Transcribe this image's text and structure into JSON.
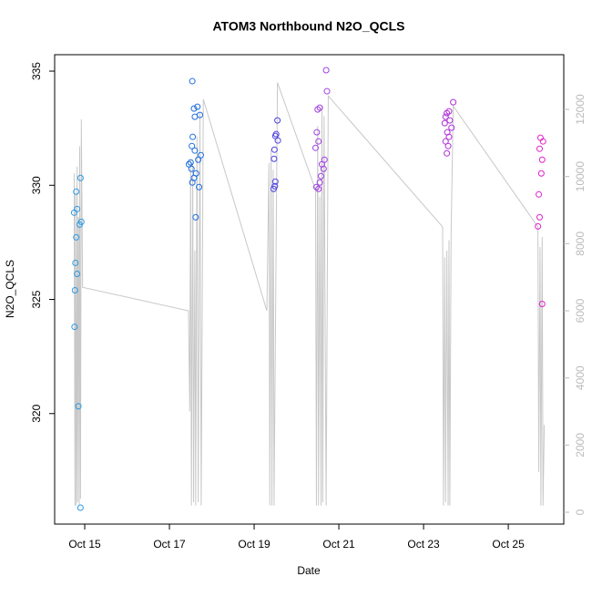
{
  "chart_data": {
    "type": "scatter",
    "title": "ATOM3 Northbound N2O_QCLS",
    "x_label": "Date",
    "y_label": "N2O_QCLS",
    "xlim": [
      14.29,
      26.31
    ],
    "xticks": [
      {
        "value": 15,
        "label": "Oct 15"
      },
      {
        "value": 17,
        "label": "Oct 17"
      },
      {
        "value": 19,
        "label": "Oct 19"
      },
      {
        "value": 21,
        "label": "Oct 21"
      },
      {
        "value": 23,
        "label": "Oct 23"
      },
      {
        "value": 25,
        "label": "Oct 25"
      }
    ],
    "ylim": [
      315.16,
      335.72
    ],
    "yticks": [
      320,
      325,
      330,
      335
    ],
    "y2lim": [
      -353,
      13629
    ],
    "y2ticks": [
      0,
      2000,
      4000,
      6000,
      8000,
      10000,
      12000
    ],
    "series": [
      {
        "type": "line",
        "axis": "y2",
        "color": "#c8c8c8",
        "x": [
          14.75,
          14.77,
          14.78,
          14.8,
          14.82,
          14.83,
          14.85,
          14.87,
          14.88,
          14.9,
          14.92,
          14.95,
          17.45,
          17.48,
          17.5,
          17.52,
          17.55,
          17.57,
          17.6,
          17.62,
          17.65,
          17.68,
          17.72,
          17.75,
          17.8,
          19.3,
          19.35,
          19.37,
          19.4,
          19.42,
          19.45,
          19.47,
          19.55,
          20.45,
          20.47,
          20.5,
          20.52,
          20.55,
          20.58,
          20.6,
          20.62,
          20.65,
          20.7,
          20.75,
          23.45,
          23.47,
          23.5,
          23.52,
          23.55,
          23.58,
          23.6,
          23.62,
          23.65,
          23.7,
          25.7,
          25.72,
          25.75,
          25.77,
          25.8,
          25.82,
          25.85
        ],
        "values": [
          10100,
          200,
          9500,
          200,
          10300,
          300,
          8800,
          200,
          10900,
          400,
          11700,
          6700,
          6000,
          3000,
          10500,
          200,
          10400,
          300,
          7800,
          200,
          11200,
          300,
          11900,
          200,
          12300,
          6000,
          10400,
          200,
          10800,
          200,
          10200,
          200,
          12800,
          9600,
          200,
          11500,
          200,
          9400,
          200,
          12100,
          300,
          11800,
          200,
          12400,
          8500,
          200,
          7600,
          300,
          7800,
          200,
          8100,
          200,
          8300,
          12100,
          8500,
          1200,
          7900,
          200,
          8200,
          200,
          2600
        ]
      },
      {
        "color": "#2b9be6",
        "x": [
          14.8,
          14.75,
          14.82,
          14.9,
          14.88,
          14.92,
          14.8,
          14.78,
          14.82,
          14.77,
          14.76,
          14.85,
          14.9
        ],
        "values": [
          329.72,
          328.8,
          328.96,
          330.32,
          328.28,
          328.4,
          327.72,
          326.6,
          326.12,
          325.4,
          323.8,
          320.32,
          315.88
        ]
      },
      {
        "color": "#1f6fe0",
        "x": [
          17.54,
          17.58,
          17.66,
          17.72,
          17.6,
          17.55,
          17.53,
          17.6,
          17.74,
          17.68,
          17.5,
          17.46,
          17.52,
          17.63,
          17.58,
          17.54,
          17.7,
          17.62
        ],
        "values": [
          334.56,
          333.36,
          333.44,
          333.08,
          333,
          332.12,
          331.72,
          331.52,
          331.32,
          331.12,
          331,
          330.92,
          330.72,
          330.52,
          330.32,
          330.12,
          329.92,
          328.6
        ]
      },
      {
        "color": "#4a3fe0",
        "x": [
          19.55,
          19.52,
          19.5,
          19.56,
          19.48,
          19.47,
          19.5,
          19.49,
          19.46
        ],
        "values": [
          332.84,
          332.24,
          332.16,
          331.96,
          331.56,
          331.16,
          330.16,
          329.96,
          329.84
        ]
      },
      {
        "color": "#a040e0",
        "x": [
          20.7,
          20.72,
          20.55,
          20.5,
          20.48,
          20.52,
          20.45,
          20.66,
          20.6,
          20.64,
          20.58,
          20.55,
          20.47,
          20.52
        ],
        "values": [
          335.04,
          334.12,
          333.4,
          333.32,
          332.32,
          331.92,
          331.64,
          331.12,
          330.92,
          330.72,
          330.4,
          330.12,
          329.92,
          329.84
        ]
      },
      {
        "color": "#b030d8",
        "x": [
          23.7,
          23.6,
          23.55,
          23.52,
          23.62,
          23.5,
          23.66,
          23.56,
          23.6,
          23.52,
          23.58,
          23.55
        ],
        "values": [
          333.64,
          333.24,
          333.16,
          333,
          332.84,
          332.72,
          332.52,
          332.32,
          332.12,
          331.92,
          331.72,
          331.4
        ]
      },
      {
        "color": "#e020c8",
        "x": [
          25.76,
          25.82,
          25.74,
          25.8,
          25.78,
          25.72,
          25.74,
          25.7,
          25.8
        ],
        "values": [
          332.08,
          331.92,
          331.6,
          331.12,
          330.52,
          329.6,
          328.6,
          328.2,
          324.8
        ]
      }
    ]
  }
}
